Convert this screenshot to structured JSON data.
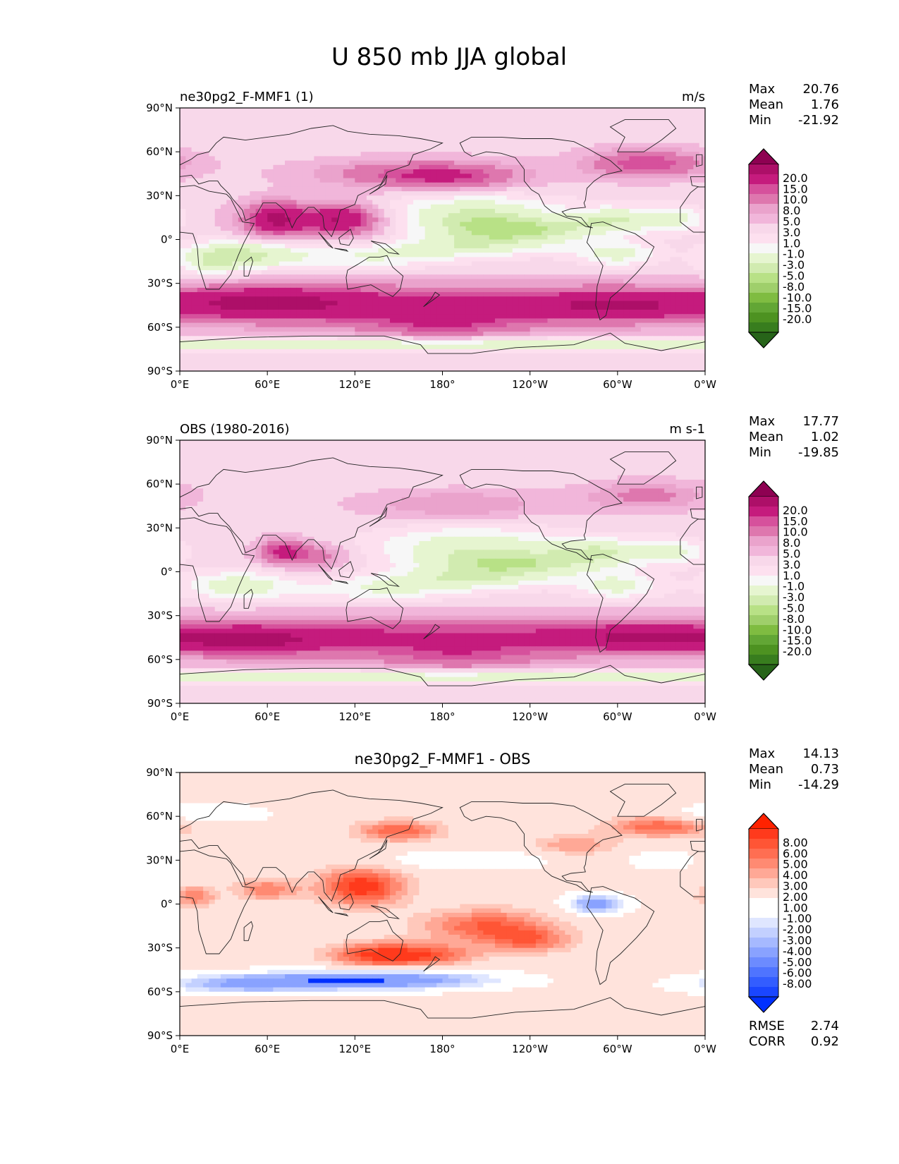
{
  "figure": {
    "title": "U 850 mb JJA global"
  },
  "lon_ticks": [
    "0°E",
    "60°E",
    "120°E",
    "180°",
    "120°W",
    "60°W",
    "0°W"
  ],
  "lat_ticks": [
    "90°N",
    "60°N",
    "30°N",
    "0°",
    "30°S",
    "60°S",
    "90°S"
  ],
  "chart_data": [
    {
      "type": "heatmap",
      "name": "test",
      "left_title": "ne30pg2_F-MMF1 (1)",
      "center_title": "",
      "right_title": "m/s",
      "xlim": [
        0,
        360
      ],
      "ylim": [
        -90,
        90
      ],
      "stats": {
        "max_label": "Max",
        "max": "20.76",
        "mean_label": "Mean",
        "mean": "1.76",
        "min_label": "Min",
        "min": "-21.92"
      },
      "colorbar_levels": [
        "20.0",
        "15.0",
        "10.0",
        "8.0",
        "5.0",
        "3.0",
        "1.0",
        "-1.0",
        "-3.0",
        "-5.0",
        "-8.0",
        "-10.0",
        "-15.0",
        "-20.0"
      ],
      "colors": [
        "#8e0152",
        "#ad0f68",
        "#c51b7d",
        "#d6519c",
        "#de77ae",
        "#eaa3cc",
        "#f1b6da",
        "#f8d8ea",
        "#fde0ef",
        "#f7f7f7",
        "#e6f5d0",
        "#d1ebb0",
        "#b8e186",
        "#9fcf6b",
        "#7fbc41",
        "#62a635",
        "#4d9221",
        "#387d1e",
        "#276419"
      ]
    },
    {
      "type": "heatmap",
      "name": "reference",
      "left_title": "OBS (1980-2016)",
      "center_title": "",
      "right_title": "m s-1",
      "xlim": [
        0,
        360
      ],
      "ylim": [
        -90,
        90
      ],
      "stats": {
        "max_label": "Max",
        "max": "17.77",
        "mean_label": "Mean",
        "mean": "1.02",
        "min_label": "Min",
        "min": "-19.85"
      },
      "colorbar_levels": [
        "20.0",
        "15.0",
        "10.0",
        "8.0",
        "5.0",
        "3.0",
        "1.0",
        "-1.0",
        "-3.0",
        "-5.0",
        "-8.0",
        "-10.0",
        "-15.0",
        "-20.0"
      ],
      "colors": [
        "#8e0152",
        "#ad0f68",
        "#c51b7d",
        "#d6519c",
        "#de77ae",
        "#eaa3cc",
        "#f1b6da",
        "#f8d8ea",
        "#fde0ef",
        "#f7f7f7",
        "#e6f5d0",
        "#d1ebb0",
        "#b8e186",
        "#9fcf6b",
        "#7fbc41",
        "#62a635",
        "#4d9221",
        "#387d1e",
        "#276419"
      ]
    },
    {
      "type": "heatmap",
      "name": "difference",
      "left_title": "",
      "center_title": "ne30pg2_F-MMF1 - OBS",
      "right_title": "",
      "xlim": [
        0,
        360
      ],
      "ylim": [
        -90,
        90
      ],
      "stats": {
        "max_label": "Max",
        "max": "14.13",
        "mean_label": "Mean",
        "mean": "0.73",
        "min_label": "Min",
        "min": "-14.29"
      },
      "extra_stats": {
        "rmse_label": "RMSE",
        "rmse": "2.74",
        "corr_label": "CORR",
        "corr": "0.92"
      },
      "colorbar_levels": [
        "8.00",
        "6.00",
        "5.00",
        "4.00",
        "3.00",
        "2.00",
        "1.00",
        "-1.00",
        "-2.00",
        "-3.00",
        "-4.00",
        "-5.00",
        "-6.00",
        "-8.00"
      ],
      "colors": [
        "#ff2200",
        "#ff3a1c",
        "#ff5535",
        "#ff6e52",
        "#ff8a72",
        "#ffa896",
        "#ffc8bb",
        "#ffe3dc",
        "#ffffff",
        "#ffffff",
        "#dfe6ff",
        "#c3d0ff",
        "#a6b9ff",
        "#89a2ff",
        "#6c8bff",
        "#4f74ff",
        "#335dff",
        "#1a46ff",
        "#0030ff"
      ]
    }
  ]
}
